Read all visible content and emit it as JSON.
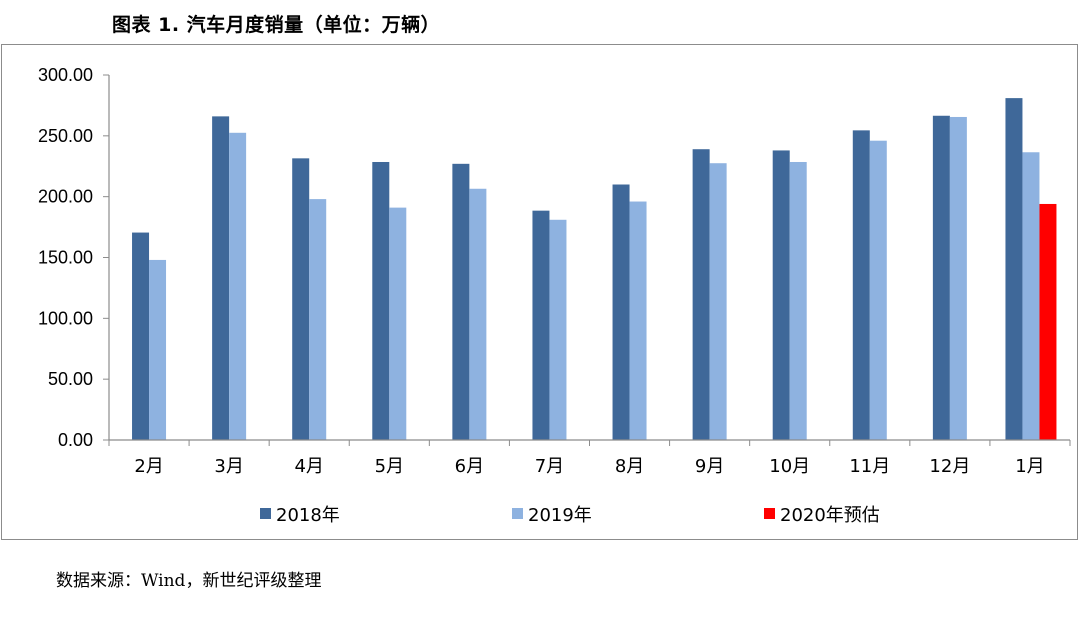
{
  "figure": {
    "title": "图表 1.  汽车月度销量（单位：万辆）",
    "source": "数据来源：Wind，新世纪评级整理"
  },
  "chart_data": {
    "type": "bar",
    "categories": [
      "2月",
      "3月",
      "4月",
      "5月",
      "6月",
      "7月",
      "8月",
      "9月",
      "10月",
      "11月",
      "12月",
      "1月"
    ],
    "series": [
      {
        "name": "2018年",
        "color": "#3f6899",
        "values": [
          170.5,
          266.0,
          231.5,
          228.5,
          227.0,
          188.5,
          210.0,
          239.0,
          238.0,
          254.5,
          266.5,
          281.0
        ]
      },
      {
        "name": "2019年",
        "color": "#8eb2e0",
        "values": [
          148.0,
          252.5,
          198.0,
          191.0,
          206.5,
          181.0,
          196.0,
          227.5,
          228.5,
          246.0,
          265.5,
          236.5
        ]
      },
      {
        "name": "2020年预估",
        "color": "#ff0000",
        "values": [
          null,
          null,
          null,
          null,
          null,
          null,
          null,
          null,
          null,
          null,
          null,
          194.0
        ]
      }
    ],
    "ylim": [
      0,
      300
    ],
    "yticks": [
      "0.00",
      "50.00",
      "100.00",
      "150.00",
      "200.00",
      "250.00",
      "300.00"
    ],
    "legend_position": "bottom",
    "grid": false
  }
}
